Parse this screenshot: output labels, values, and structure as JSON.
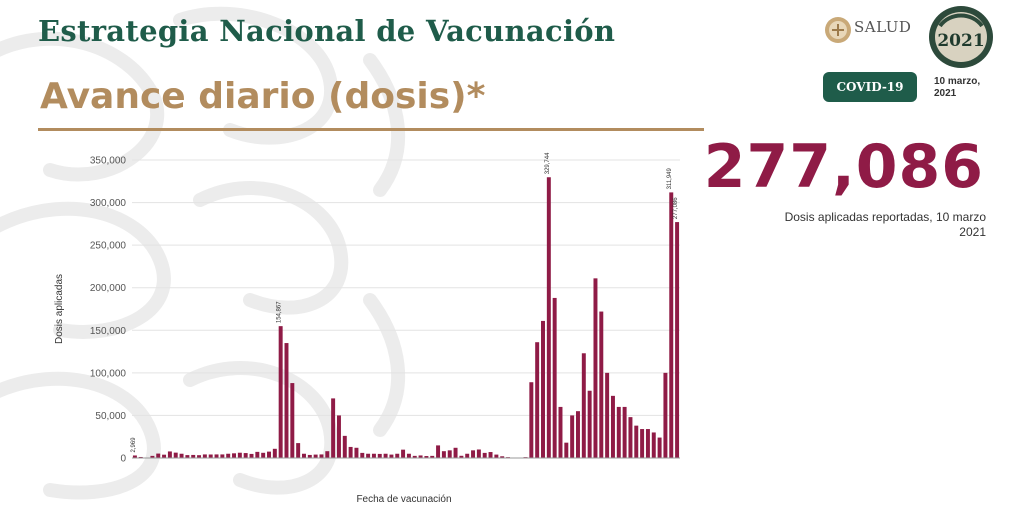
{
  "header": {
    "title": "Estrategia Nacional de Vacunación",
    "subtitle": "Avance diario (dosis)*"
  },
  "branding": {
    "salud_label": "SALUD",
    "year_label": "2021",
    "badge_label": "COVID-19",
    "date_label": "10 marzo, 2021"
  },
  "summary": {
    "value": "277,086",
    "caption": "Dosis aplicadas reportadas, 10 marzo 2021"
  },
  "colors": {
    "bar": "#8f1b46",
    "title": "#1f5c4a",
    "accent": "#b28c5e"
  },
  "chart_data": {
    "type": "bar",
    "title": "",
    "xlabel": "Fecha de vacunación",
    "ylabel": "Dosis aplicadas",
    "ylim": [
      0,
      350000
    ],
    "yticks": [
      "0",
      "50,000",
      "100,000",
      "150,000",
      "200,000",
      "250,000",
      "300,000",
      "350,000"
    ],
    "grid": true,
    "values": [
      2969,
      1200,
      600,
      2500,
      5200,
      3900,
      7700,
      6300,
      5000,
      3400,
      3600,
      3300,
      4200,
      4100,
      4200,
      4200,
      5000,
      5500,
      6200,
      5800,
      4800,
      7200,
      6100,
      7500,
      10800,
      154867,
      135000,
      88000,
      17500,
      5000,
      3600,
      4000,
      4200,
      8000,
      70000,
      50000,
      26000,
      13000,
      12000,
      6000,
      5000,
      5000,
      4800,
      5000,
      4000,
      5000,
      9800,
      5000,
      2500,
      3000,
      2300,
      2500,
      14800,
      8000,
      9000,
      12000,
      2600,
      5000,
      9000,
      10000,
      6000,
      7000,
      4000,
      2000,
      1000,
      500,
      300,
      1000,
      89000,
      136000,
      161000,
      329744,
      188000,
      60000,
      18000,
      50000,
      55000,
      123000,
      79000,
      211000,
      172000,
      100000,
      73000,
      60000,
      60000,
      48000,
      38000,
      34000,
      34000,
      30000,
      24000,
      100000,
      311949,
      277086
    ],
    "data_labels": [
      "2,969",
      "",
      "",
      "",
      "",
      "",
      "",
      "",
      "",
      "",
      "",
      "",
      "",
      "",
      "",
      "",
      "",
      "",
      "",
      "",
      "",
      "",
      "",
      "",
      "",
      "154,867",
      "",
      "",
      "",
      "",
      "",
      "",
      "",
      "",
      "",
      "",
      "",
      "",
      "",
      "",
      "",
      "",
      "",
      "",
      "",
      "",
      "",
      "",
      "",
      "",
      "",
      "",
      "",
      "",
      "",
      "",
      "",
      "",
      "",
      "",
      "",
      "",
      "",
      "",
      "",
      "",
      "",
      "",
      "",
      "",
      "",
      "329,744",
      "",
      "",
      "",
      "",
      "",
      "",
      "",
      "",
      "",
      "",
      "",
      "",
      "",
      "",
      "",
      "",
      "",
      "",
      "",
      "",
      "311,949",
      "277,086"
    ]
  }
}
